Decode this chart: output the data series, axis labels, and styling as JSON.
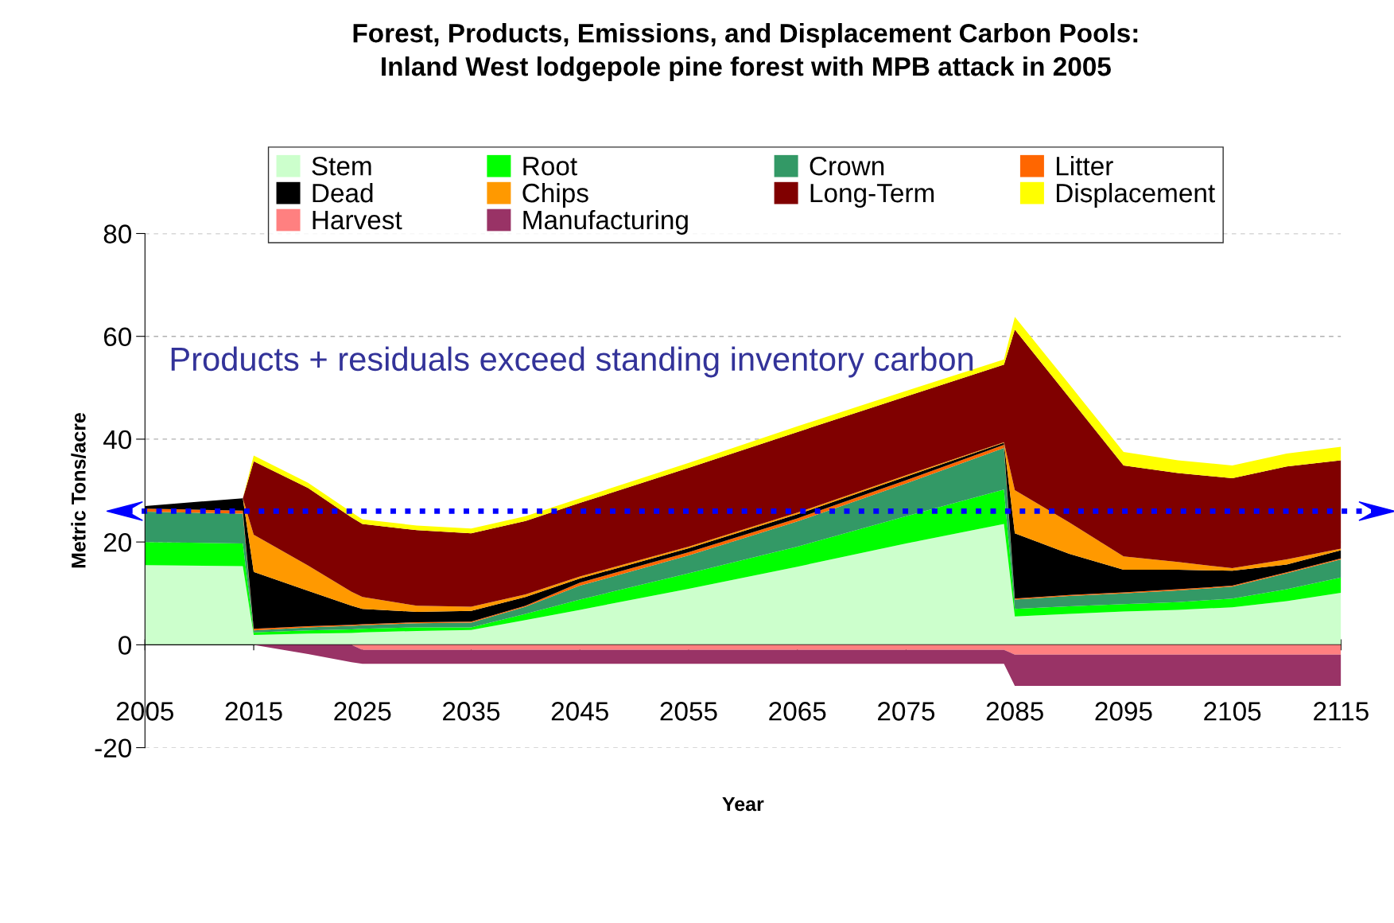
{
  "chart_data": [
    {
      "type": "area",
      "stacked": true,
      "title": "Forest, Products, Emissions, and Displacement Carbon Pools:\nInland West lodgepole pine forest with MPB attack in 2005",
      "xlabel": "Year",
      "ylabel": "Metric Tons/acre",
      "x": [
        2005,
        2014,
        2015,
        2020,
        2024,
        2025,
        2030,
        2035,
        2040,
        2045,
        2055,
        2065,
        2075,
        2084,
        2085,
        2090,
        2095,
        2100,
        2105,
        2110,
        2115
      ],
      "series": [
        {
          "name": "Stem",
          "color": "#ccffcc",
          "values": [
            15.5,
            15.3,
            1.9,
            2.2,
            2.3,
            2.4,
            2.7,
            2.9,
            4.8,
            6.8,
            10.9,
            15.2,
            19.7,
            23.5,
            5.5,
            6.0,
            6.5,
            6.8,
            7.3,
            8.5,
            10.1
          ]
        },
        {
          "name": "Root",
          "color": "#00ff00",
          "values": [
            4.5,
            4.4,
            0.5,
            0.6,
            0.7,
            0.7,
            0.7,
            0.5,
            1.2,
            2.0,
            3.0,
            3.9,
            5.3,
            6.7,
            1.5,
            1.5,
            1.4,
            1.5,
            1.7,
            2.3,
            3.0
          ]
        },
        {
          "name": "Crown",
          "color": "#339966",
          "values": [
            5.9,
            5.8,
            0.4,
            0.6,
            0.7,
            0.7,
            0.8,
            0.9,
            1.4,
            2.7,
            3.5,
            4.9,
            6.4,
            8.1,
            1.8,
            2.0,
            2.1,
            2.3,
            2.3,
            3.1,
            3.5
          ]
        },
        {
          "name": "Litter",
          "color": "#ff6600",
          "values": [
            0.6,
            0.6,
            0.3,
            0.2,
            0.2,
            0.2,
            0.2,
            0.2,
            0.2,
            0.6,
            0.6,
            0.6,
            0.6,
            0.6,
            0.2,
            0.2,
            0.2,
            0.2,
            0.2,
            0.2,
            0.2
          ]
        },
        {
          "name": "Dead",
          "color": "#000000",
          "values": [
            0.5,
            2.4,
            11.1,
            6.9,
            3.7,
            3.0,
            2.0,
            2.1,
            1.7,
            0.8,
            0.8,
            0.8,
            0.7,
            0.4,
            12.7,
            8.0,
            4.4,
            3.8,
            2.9,
            1.5,
            1.6
          ]
        },
        {
          "name": "Chips",
          "color": "#ff9900",
          "values": [
            0,
            0,
            7.2,
            4.9,
            2.7,
            2.3,
            1.2,
            0.8,
            0.5,
            0.4,
            0.3,
            0.3,
            0.3,
            0.1,
            8.4,
            6.1,
            2.6,
            1.5,
            0.5,
            1.0,
            0.3
          ]
        },
        {
          "name": "Long-Term",
          "color": "#800000",
          "values": [
            0,
            0,
            14.3,
            15.1,
            14.5,
            14.2,
            14.7,
            14.3,
            14.3,
            14.3,
            15.3,
            15.7,
            15.3,
            15.1,
            31.2,
            24.3,
            17.7,
            17.3,
            17.5,
            18.1,
            17.2
          ]
        },
        {
          "name": "Displacement",
          "color": "#ffff00",
          "values": [
            0,
            0,
            1.1,
            1.0,
            1.0,
            0.9,
            0.9,
            0.9,
            0.9,
            0.9,
            1.0,
            1.1,
            1.1,
            1.0,
            2.5,
            2.6,
            2.6,
            2.5,
            2.5,
            2.5,
            2.6
          ]
        }
      ],
      "xlim": [
        2005,
        2115
      ],
      "xticks": [
        2005,
        2015,
        2025,
        2035,
        2045,
        2055,
        2065,
        2075,
        2085,
        2095,
        2105,
        2115
      ],
      "ylim": [
        -20,
        80
      ],
      "yticks": [
        -20,
        0,
        20,
        40,
        60,
        80
      ],
      "grid": "y",
      "legend": "top",
      "ref_lines": [
        {
          "axis": "y",
          "value": 26,
          "color": "#0000ff",
          "line_style": "dotted"
        }
      ],
      "annotations": [
        "Products + residuals exceed standing inventory carbon"
      ]
    },
    {
      "type": "area",
      "stacked": true,
      "x": [
        2005,
        2014,
        2015,
        2020,
        2024,
        2025,
        2030,
        2035,
        2040,
        2045,
        2055,
        2065,
        2075,
        2084,
        2085,
        2090,
        2095,
        2100,
        2105,
        2110,
        2115
      ],
      "series": [
        {
          "name": "Harvest",
          "color": "#ff8080",
          "values": [
            0,
            0,
            0,
            0,
            0,
            -1.0,
            -1.0,
            -1.0,
            -1.0,
            -1.0,
            -1.0,
            -1.0,
            -1.0,
            -1.0,
            -1.9,
            -1.9,
            -1.9,
            -1.9,
            -1.9,
            -1.9,
            -1.9
          ]
        },
        {
          "name": "Manufacturing",
          "color": "#993366",
          "values": [
            0,
            0,
            0,
            -1.8,
            -3.4,
            -2.7,
            -2.7,
            -2.7,
            -2.7,
            -2.7,
            -2.7,
            -2.7,
            -2.7,
            -2.7,
            -6.1,
            -6.1,
            -6.1,
            -6.1,
            -6.1,
            -6.1,
            -6.1
          ]
        }
      ],
      "xlim": [
        2005,
        2115
      ],
      "ylim": [
        -20,
        80
      ],
      "tick_labels": false,
      "legend": "top"
    }
  ]
}
